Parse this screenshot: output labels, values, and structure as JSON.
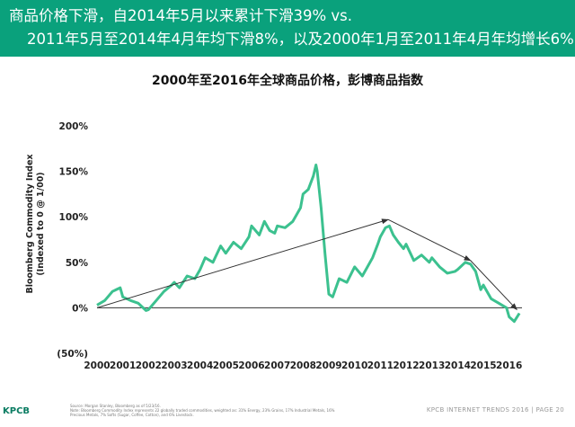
{
  "header": {
    "line1": "商品价格下滑，自2014年5月以来累计下滑39% vs.",
    "line2": "2011年5月至2014年4月年均下滑8%，以及2000年1月至2011年4月年均增长6%"
  },
  "colors": {
    "header_bg": "#0aa17c",
    "series": "#3cc18f",
    "trend": "#333333"
  },
  "chart_data": {
    "type": "line",
    "title": "2000年至2016年全球商品价格，彭博商品指数",
    "ylabel_line1": "Bloomberg Commodity Index",
    "ylabel_line2": "(Indexed to 0 @ 1/00)",
    "xlabel": "",
    "xlim": [
      2000,
      2016.5
    ],
    "ylim": [
      -50,
      200
    ],
    "y_ticks": [
      {
        "value": 200,
        "label": "200%"
      },
      {
        "value": 150,
        "label": "150%"
      },
      {
        "value": 100,
        "label": "100%"
      },
      {
        "value": 50,
        "label": "50%"
      },
      {
        "value": 0,
        "label": "0%"
      },
      {
        "value": -50,
        "label": "(50%)"
      }
    ],
    "x_ticks": [
      {
        "value": 2000,
        "label": "2000"
      },
      {
        "value": 2001,
        "label": "2001"
      },
      {
        "value": 2002,
        "label": "2002"
      },
      {
        "value": 2003,
        "label": "2003"
      },
      {
        "value": 2004,
        "label": "2004"
      },
      {
        "value": 2005,
        "label": "2005"
      },
      {
        "value": 2006,
        "label": "2006"
      },
      {
        "value": 2007,
        "label": "2007"
      },
      {
        "value": 2008,
        "label": "2008"
      },
      {
        "value": 2009,
        "label": "2009"
      },
      {
        "value": 2010,
        "label": "2010"
      },
      {
        "value": 2011,
        "label": "2011"
      },
      {
        "value": 2012,
        "label": "2012"
      },
      {
        "value": 2013,
        "label": "2013"
      },
      {
        "value": 2014,
        "label": "2014"
      },
      {
        "value": 2015,
        "label": "2015"
      },
      {
        "value": 2016,
        "label": "2016"
      }
    ],
    "series": [
      {
        "name": "Bloomberg Commodity Index",
        "x": [
          2000.0,
          2000.3,
          2000.6,
          2000.9,
          2001.0,
          2001.3,
          2001.6,
          2001.9,
          2002.0,
          2002.3,
          2002.6,
          2002.9,
          2003.0,
          2003.2,
          2003.5,
          2003.8,
          2004.0,
          2004.2,
          2004.5,
          2004.8,
          2005.0,
          2005.3,
          2005.6,
          2005.9,
          2006.0,
          2006.3,
          2006.5,
          2006.7,
          2006.9,
          2007.0,
          2007.3,
          2007.6,
          2007.9,
          2008.0,
          2008.2,
          2008.4,
          2008.5,
          2008.55,
          2008.7,
          2008.85,
          2009.0,
          2009.15,
          2009.4,
          2009.7,
          2010.0,
          2010.3,
          2010.5,
          2010.7,
          2010.9,
          2011.0,
          2011.2,
          2011.35,
          2011.5,
          2011.7,
          2011.9,
          2012.0,
          2012.3,
          2012.6,
          2012.9,
          2013.0,
          2013.3,
          2013.6,
          2013.9,
          2014.0,
          2014.3,
          2014.5,
          2014.7,
          2014.9,
          2015.0,
          2015.3,
          2015.6,
          2015.9,
          2016.0,
          2016.2,
          2016.4
        ],
        "values": [
          3,
          8,
          18,
          22,
          12,
          8,
          5,
          -3,
          -2,
          8,
          18,
          25,
          28,
          22,
          35,
          32,
          42,
          55,
          50,
          68,
          60,
          72,
          65,
          78,
          90,
          80,
          95,
          85,
          82,
          90,
          88,
          95,
          110,
          125,
          130,
          145,
          157,
          150,
          110,
          60,
          15,
          12,
          32,
          28,
          45,
          35,
          45,
          55,
          70,
          78,
          88,
          90,
          80,
          72,
          65,
          70,
          52,
          58,
          50,
          55,
          45,
          38,
          40,
          42,
          50,
          48,
          40,
          20,
          25,
          10,
          5,
          0,
          -10,
          -15,
          -6
        ]
      }
    ],
    "trend_lines": [
      {
        "from": [
          2000.0,
          0
        ],
        "to": [
          2011.3,
          97
        ]
      },
      {
        "from": [
          2011.3,
          97
        ],
        "to": [
          2014.5,
          52
        ]
      },
      {
        "from": [
          2014.5,
          52
        ],
        "to": [
          2016.3,
          -2
        ]
      }
    ],
    "grid": false,
    "legend": "none"
  },
  "footer": {
    "logo": "KPCB",
    "note_line1": "Source: Morgan Stanley, Bloomberg as of 5/23/16.",
    "note_line2": "Note: Bloomberg Commodity Index represents 22 globally traded commodities, weighted as: 31% Energy, 23% Grains, 17% Industrial Metals, 16% Precious Metals, 7% Softs (Sugar, Coffee, Cotton), and 6% Livestock.",
    "right": "KPCB INTERNET TRENDS 2016  |  PAGE 20"
  }
}
